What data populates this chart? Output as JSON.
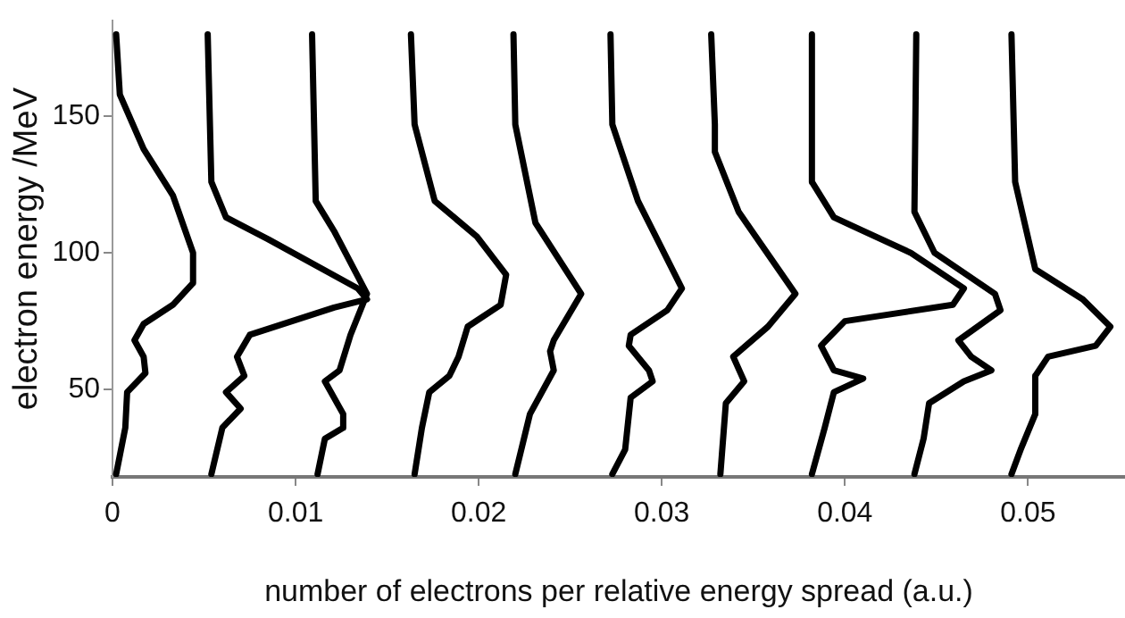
{
  "chart_data": {
    "type": "line",
    "xlabel": "number of electrons per relative energy spread (a.u.)",
    "ylabel": "electron energy /MeV",
    "xlim": [
      0,
      0.0553
    ],
    "ylim": [
      18,
      185
    ],
    "xticks": [
      0,
      0.01,
      0.02,
      0.03,
      0.04,
      0.05
    ],
    "yticks": [
      50,
      100,
      150
    ],
    "grid": false,
    "legend": false,
    "marker": "none",
    "line_style": "solid",
    "series": [
      {
        "color": "#000000",
        "x": [
          0.0002,
          0.0004,
          0.0017,
          0.0033,
          0.0044,
          0.0044,
          0.0033,
          0.0017,
          0.0012,
          0.0017,
          0.0018,
          0.0008,
          0.0007,
          0.0002
        ],
        "values": [
          180,
          158,
          138,
          121,
          100,
          89,
          81,
          74,
          68,
          62,
          56,
          49,
          36,
          19
        ]
      },
      {
        "color": "#000000",
        "x": [
          0.0052,
          0.0054,
          0.0062,
          0.0085,
          0.0134,
          0.0139,
          0.0121,
          0.0075,
          0.0068,
          0.0072,
          0.0062,
          0.007,
          0.006,
          0.0054
        ],
        "values": [
          180,
          126,
          113,
          105,
          87,
          83,
          80,
          70,
          62,
          55,
          49,
          43,
          36,
          19
        ]
      },
      {
        "color": "#000000",
        "x": [
          0.0109,
          0.0111,
          0.0121,
          0.0139,
          0.013,
          0.0124,
          0.0116,
          0.0126,
          0.0126,
          0.0116,
          0.0112
        ],
        "values": [
          180,
          119,
          108,
          85,
          70,
          57,
          53,
          41,
          36,
          32,
          19
        ]
      },
      {
        "color": "#000000",
        "x": [
          0.0163,
          0.0165,
          0.0176,
          0.0199,
          0.0215,
          0.0212,
          0.0194,
          0.0189,
          0.0184,
          0.0173,
          0.0169,
          0.0165
        ],
        "values": [
          180,
          147,
          119,
          106,
          92,
          81,
          73,
          62,
          55,
          49,
          36,
          19
        ]
      },
      {
        "color": "#000000",
        "x": [
          0.0219,
          0.022,
          0.0231,
          0.0256,
          0.0241,
          0.0239,
          0.0241,
          0.0228,
          0.022
        ],
        "values": [
          180,
          147,
          111,
          85,
          68,
          64,
          57,
          41,
          19
        ]
      },
      {
        "color": "#000000",
        "x": [
          0.0272,
          0.0273,
          0.0287,
          0.0311,
          0.0303,
          0.0283,
          0.0282,
          0.0293,
          0.0295,
          0.0283,
          0.028,
          0.0273
        ],
        "values": [
          180,
          147,
          119,
          87,
          79,
          70,
          66,
          57,
          53,
          47,
          28,
          19
        ]
      },
      {
        "color": "#000000",
        "x": [
          0.0327,
          0.0329,
          0.0329,
          0.0342,
          0.0373,
          0.0358,
          0.0339,
          0.0345,
          0.0335,
          0.0332
        ],
        "values": [
          180,
          147,
          137,
          115,
          85,
          73,
          62,
          53,
          45,
          19
        ]
      },
      {
        "color": "#000000",
        "x": [
          0.0382,
          0.0382,
          0.0394,
          0.0436,
          0.0465,
          0.0459,
          0.04,
          0.0387,
          0.0394,
          0.041,
          0.0394,
          0.0389,
          0.0382
        ],
        "values": [
          180,
          126,
          113,
          100,
          87,
          81,
          75,
          66,
          57,
          54,
          49,
          36,
          19
        ]
      },
      {
        "color": "#000000",
        "x": [
          0.0439,
          0.0438,
          0.0449,
          0.0482,
          0.0485,
          0.0462,
          0.0469,
          0.048,
          0.0465,
          0.0446,
          0.0443,
          0.0438
        ],
        "values": [
          180,
          115,
          100,
          85,
          79,
          68,
          62,
          57,
          53,
          45,
          32,
          19
        ]
      },
      {
        "color": "#000000",
        "x": [
          0.0491,
          0.0493,
          0.0504,
          0.053,
          0.0545,
          0.0537,
          0.0511,
          0.0504,
          0.0504,
          0.0496,
          0.0491
        ],
        "values": [
          180,
          126,
          94,
          83,
          73,
          66,
          62,
          55,
          41,
          28,
          19
        ]
      }
    ]
  }
}
